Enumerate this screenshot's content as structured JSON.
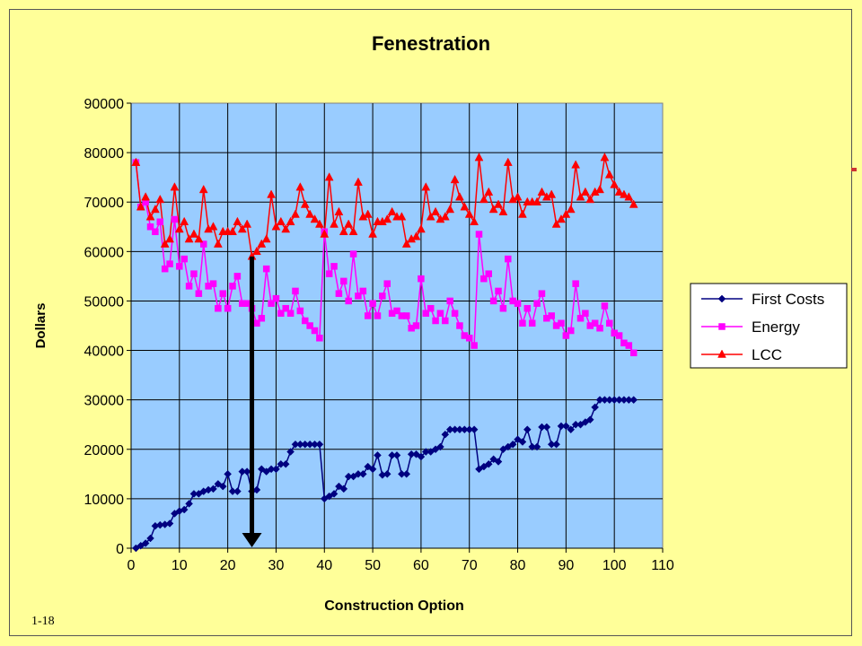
{
  "slide_number": "1-18",
  "colors": {
    "background": "#ffff99",
    "plot_area": "#99ccff",
    "first_costs": "#000080",
    "energy": "#ff00ff",
    "lcc": "#ff0000",
    "arrow": "#000000"
  },
  "chart_data": {
    "type": "line",
    "title": "Fenestration",
    "xlabel": "Construction Option",
    "ylabel": "Dollars",
    "xlim": [
      0,
      110
    ],
    "ylim": [
      0,
      90000
    ],
    "xticks": [
      0,
      10,
      20,
      30,
      40,
      50,
      60,
      70,
      80,
      90,
      100,
      110
    ],
    "yticks": [
      0,
      10000,
      20000,
      30000,
      40000,
      50000,
      60000,
      70000,
      80000,
      90000
    ],
    "x_tick_labels": [
      "0",
      "10",
      "20",
      "30",
      "40",
      "50",
      "60",
      "70",
      "80",
      "90",
      "100",
      "110"
    ],
    "y_tick_labels": [
      "0",
      "10000",
      "20000",
      "30000",
      "40000",
      "50000",
      "60000",
      "70000",
      "80000",
      "90000"
    ],
    "grid": true,
    "legend_position": "right",
    "annotation": {
      "type": "arrow",
      "x": 25,
      "y_from": 59000,
      "y_to": 0
    },
    "x": [
      1,
      2,
      3,
      4,
      5,
      6,
      7,
      8,
      9,
      10,
      11,
      12,
      13,
      14,
      15,
      16,
      17,
      18,
      19,
      20,
      21,
      22,
      23,
      24,
      25,
      26,
      27,
      28,
      29,
      30,
      31,
      32,
      33,
      34,
      35,
      36,
      37,
      38,
      39,
      40,
      41,
      42,
      43,
      44,
      45,
      46,
      47,
      48,
      49,
      50,
      51,
      52,
      53,
      54,
      55,
      56,
      57,
      58,
      59,
      60,
      61,
      62,
      63,
      64,
      65,
      66,
      67,
      68,
      69,
      70,
      71,
      72,
      73,
      74,
      75,
      76,
      77,
      78,
      79,
      80,
      81,
      82,
      83,
      84,
      85,
      86,
      87,
      88,
      89,
      90,
      91,
      92,
      93,
      94,
      95,
      96,
      97,
      98,
      99,
      100,
      101,
      102,
      103,
      104
    ],
    "series": [
      {
        "name": "First Costs",
        "marker": "diamond",
        "values": [
          0,
          500,
          1000,
          2000,
          4500,
          4700,
          4800,
          5000,
          7000,
          7500,
          7800,
          9000,
          11000,
          11000,
          11500,
          11800,
          12000,
          13000,
          12500,
          15000,
          11500,
          11500,
          15500,
          15500,
          11500,
          11800,
          16000,
          15500,
          16000,
          16000,
          17000,
          17000,
          19500,
          21000,
          21000,
          21000,
          21000,
          21000,
          21000,
          10000,
          10500,
          11000,
          12500,
          12000,
          14500,
          14500,
          15000,
          15000,
          16500,
          16000,
          18800,
          14800,
          15000,
          18800,
          18800,
          15000,
          15000,
          19000,
          19000,
          18500,
          19500,
          19500,
          20000,
          20500,
          23000,
          24000,
          24000,
          24000,
          24000,
          24000,
          24000,
          16000,
          16500,
          17000,
          18000,
          17500,
          20000,
          20500,
          21000,
          22000,
          21500,
          24000,
          20500,
          20500,
          24500,
          24500,
          21000,
          21000,
          24700,
          24700,
          24000,
          25000,
          25000,
          25500,
          26000,
          28500,
          30000,
          30000,
          30000,
          30000,
          30000,
          30000,
          30000,
          30000
        ]
      },
      {
        "name": "Energy",
        "marker": "square",
        "values": [
          78000,
          69000,
          70000,
          65000,
          64000,
          66000,
          56500,
          57500,
          66500,
          57000,
          58500,
          53000,
          55500,
          51500,
          61500,
          53000,
          53500,
          48500,
          51500,
          48500,
          53000,
          55000,
          49500,
          49500,
          48500,
          45500,
          46500,
          56500,
          49500,
          50500,
          47500,
          48500,
          47500,
          52000,
          48000,
          46000,
          45000,
          44000,
          42500,
          64000,
          55500,
          57000,
          51500,
          54000,
          50000,
          59500,
          51000,
          52000,
          47000,
          49500,
          47000,
          51000,
          53500,
          47500,
          48000,
          47000,
          47000,
          44500,
          45000,
          54500,
          47500,
          48500,
          46000,
          47500,
          46000,
          50000,
          47500,
          45000,
          43000,
          42500,
          41000,
          63500,
          54500,
          55500,
          50000,
          52000,
          48500,
          58500,
          50000,
          49500,
          45500,
          48500,
          45500,
          49500,
          51500,
          46500,
          47000,
          45000,
          45500,
          43000,
          44000,
          53500,
          46500,
          47500,
          45000,
          45500,
          44500,
          49000,
          45500,
          43500,
          43000,
          41500,
          41000,
          39500
        ]
      },
      {
        "name": "LCC",
        "marker": "triangle",
        "values": [
          78000,
          69000,
          71000,
          67000,
          68500,
          70500,
          61500,
          62500,
          73000,
          64500,
          66000,
          62500,
          63500,
          62500,
          72500,
          64500,
          65000,
          61500,
          64000,
          64000,
          64000,
          66000,
          64500,
          65500,
          59000,
          60000,
          61500,
          62500,
          71500,
          65000,
          66000,
          64500,
          66000,
          67500,
          73000,
          69500,
          67500,
          66500,
          65500,
          63500,
          75000,
          65500,
          68000,
          64000,
          65500,
          64000,
          74000,
          67000,
          67500,
          63500,
          66000,
          66000,
          66500,
          68000,
          67000,
          67000,
          61500,
          62500,
          63000,
          64500,
          73000,
          67000,
          68000,
          66500,
          67000,
          68500,
          74500,
          71000,
          69000,
          67500,
          66000,
          79000,
          70500,
          72000,
          68500,
          69500,
          68000,
          78000,
          70500,
          71000,
          67500,
          70000,
          70000,
          70000,
          72000,
          71000,
          71500,
          65500,
          66500,
          67500,
          68500,
          77500,
          71000,
          72000,
          70500,
          72000,
          72500,
          79000,
          75500,
          73500,
          72000,
          71500,
          71000,
          69500
        ]
      }
    ]
  }
}
